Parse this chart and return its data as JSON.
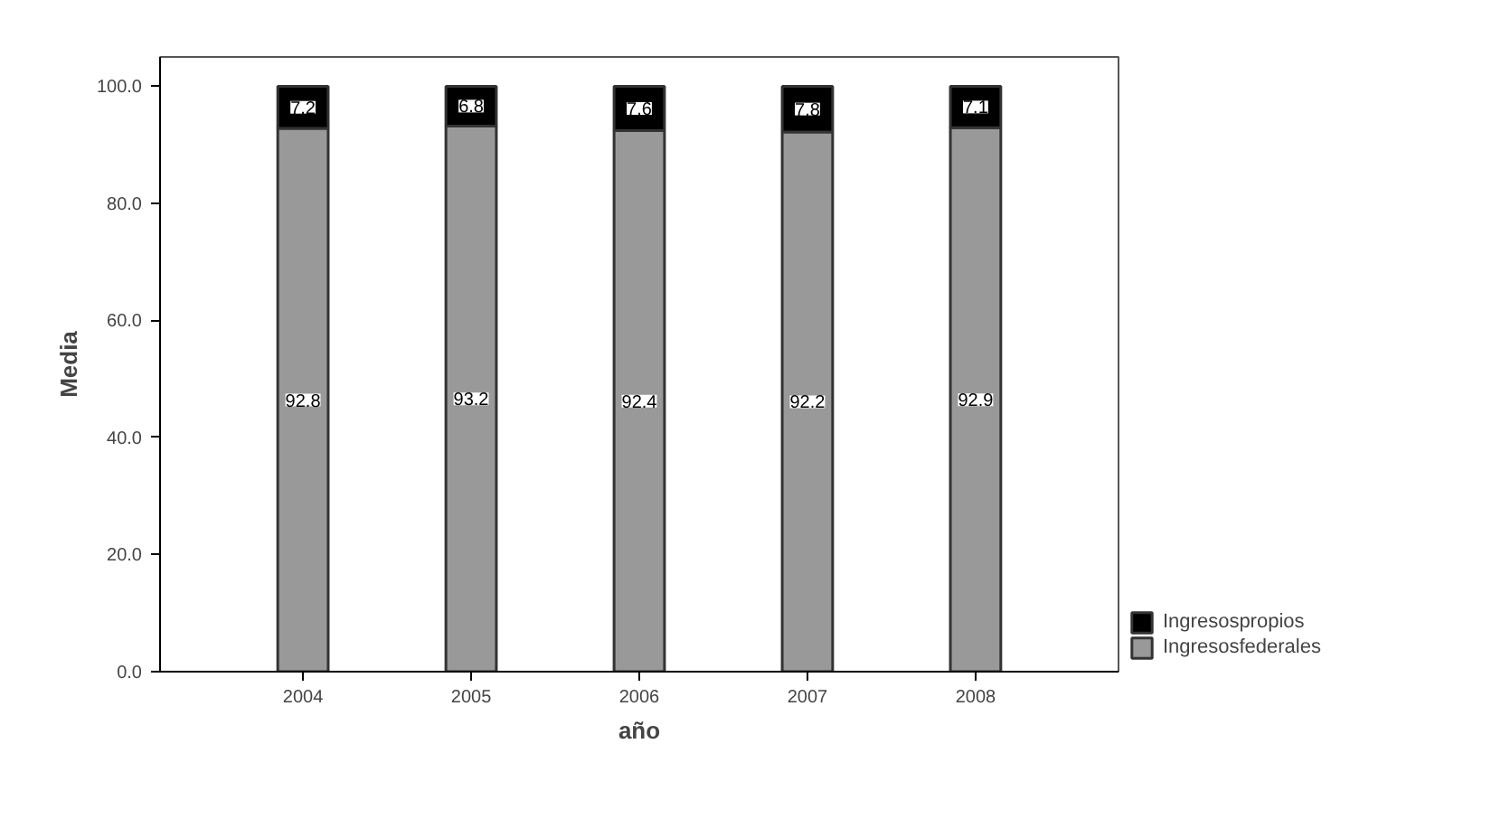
{
  "chart_data": {
    "type": "bar",
    "xlabel": "año",
    "ylabel": "Media",
    "categories": [
      "2004",
      "2005",
      "2006",
      "2007",
      "2008"
    ],
    "series": [
      {
        "name": "Ingresosfederales",
        "color": "#999999",
        "values": [
          92.8,
          93.2,
          92.4,
          92.2,
          92.9
        ]
      },
      {
        "name": "Ingresospropios",
        "color": "#000000",
        "values": [
          7.2,
          6.8,
          7.6,
          7.8,
          7.1
        ]
      }
    ],
    "stacked": true,
    "data_labels": true,
    "ylim": [
      0,
      105
    ],
    "yticks": [
      {
        "value": 0,
        "label": "0.0"
      },
      {
        "value": 20,
        "label": "20.0"
      },
      {
        "value": 40,
        "label": "40.0"
      },
      {
        "value": 60,
        "label": "60.0"
      },
      {
        "value": 80,
        "label": "80.0"
      },
      {
        "value": 100,
        "label": "100.0"
      }
    ],
    "grid": false,
    "legend": "bottom right"
  }
}
